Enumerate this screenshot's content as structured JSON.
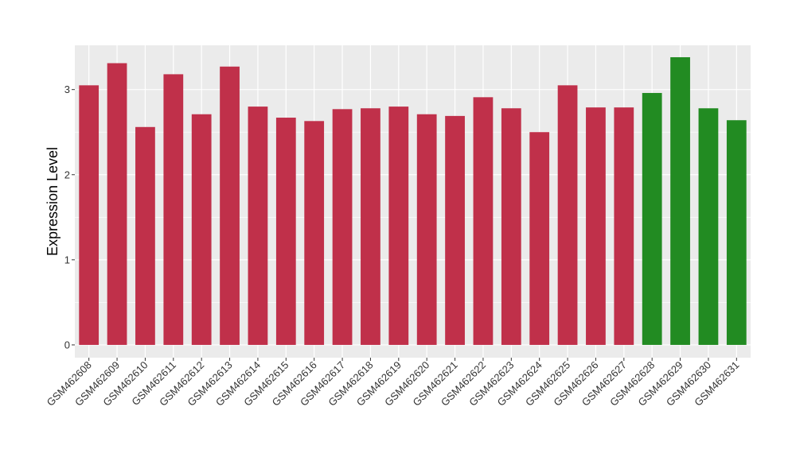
{
  "chart_data": {
    "type": "bar",
    "title": "",
    "xlabel": "",
    "ylabel": "Expression Level",
    "ylim": [
      -0.15,
      3.52
    ],
    "yticks": [
      0,
      1,
      2,
      3
    ],
    "grid": true,
    "legend": "none",
    "background_color": "#ebebeb",
    "grid_color": "#ffffff",
    "colors": {
      "red": "#c0304a",
      "green": "#228b22"
    },
    "categories": [
      "GSM462608",
      "GSM462609",
      "GSM462610",
      "GSM462611",
      "GSM462612",
      "GSM462613",
      "GSM462614",
      "GSM462615",
      "GSM462616",
      "GSM462617",
      "GSM462618",
      "GSM462619",
      "GSM462620",
      "GSM462621",
      "GSM462622",
      "GSM462623",
      "GSM462624",
      "GSM462625",
      "GSM462626",
      "GSM462627",
      "GSM462628",
      "GSM462629",
      "GSM462630",
      "GSM462631"
    ],
    "values": [
      3.05,
      3.31,
      2.56,
      3.18,
      2.71,
      3.27,
      2.8,
      2.67,
      2.63,
      2.77,
      2.78,
      2.8,
      2.71,
      2.69,
      2.91,
      2.78,
      2.5,
      3.05,
      2.79,
      2.79,
      2.96,
      3.38,
      2.78,
      2.64
    ],
    "bar_colors": [
      "red",
      "red",
      "red",
      "red",
      "red",
      "red",
      "red",
      "red",
      "red",
      "red",
      "red",
      "red",
      "red",
      "red",
      "red",
      "red",
      "red",
      "red",
      "red",
      "red",
      "green",
      "green",
      "green",
      "green"
    ]
  }
}
